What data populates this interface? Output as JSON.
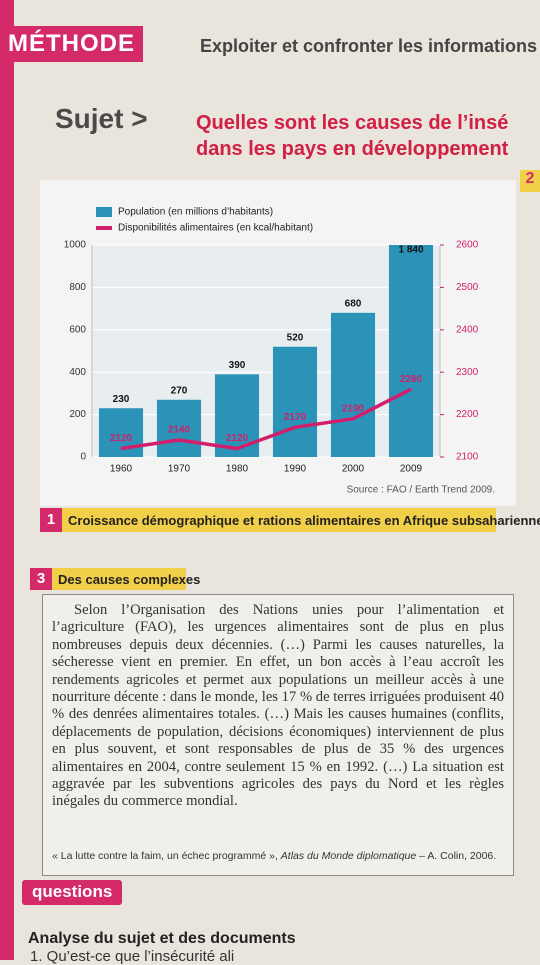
{
  "header": {
    "tag": "MÉTHODE",
    "title": "Exploiter et confronter les informations d"
  },
  "subject": {
    "label": "Sujet >",
    "question": [
      "Quelles sont les causes de l’insé",
      "dans les pays en développement"
    ]
  },
  "side_tab": "2",
  "chart_data": {
    "type": "bar",
    "categories": [
      "1960",
      "1970",
      "1980",
      "1990",
      "2000",
      "2009"
    ],
    "series": [
      {
        "name": "Population (en millions d’habitants)",
        "color": "#2b93b8",
        "type": "bar",
        "values": [
          230,
          270,
          390,
          520,
          680,
          1840
        ],
        "value_labels": [
          "230",
          "270",
          "390",
          "520",
          "680",
          "1 840"
        ]
      },
      {
        "name": "Disponibilités alimentaires (en kcal/habitant)",
        "color": "#d21f6c",
        "type": "line",
        "axis": "y2",
        "values": [
          2120,
          2140,
          2120,
          2170,
          2190,
          2260
        ]
      }
    ],
    "ylim": [
      0,
      1000
    ],
    "yticks": [
      0,
      200,
      400,
      600,
      800,
      1000
    ],
    "y2lim": [
      2100,
      2600
    ],
    "y2ticks": [
      2100,
      2200,
      2300,
      2400,
      2500,
      2600
    ],
    "source": "Source : FAO / Earth Trend 2009."
  },
  "doc1": {
    "number": "1",
    "caption": "Croissance démographique et rations alimentaires en Afrique subsaharienne"
  },
  "doc3": {
    "number": "3",
    "title": "Des causes complexes",
    "text": "Selon l’Organisation des Nations unies pour l’alimentation et l’agriculture (FAO), les urgences alimentaires sont de plus en plus nombreuses depuis deux décennies. (…) Parmi les causes naturelles, la sécheresse vient en premier. En effet, un bon accès à l’eau accroît les rendements agricoles et permet aux populations un meilleur accès à une nourriture décente : dans le monde, les 17 % de terres irriguées produisent 40 % des denrées alimentaires totales. (…) Mais les causes humaines (conflits, déplacements de population, décisions économiques) interviennent de plus en plus souvent, et sont responsables de plus de 35 % des urgences alimentaires en 2004, contre seulement 15 % en 1992. (…) La situation est aggravée par les subventions agricoles des pays du Nord et les règles inégales du commerce mondial.",
    "citation": {
      "title": "« La lutte contre la faim, un échec programmé »,",
      "source": "Atlas du Monde diplomatique",
      "publisher": "– A. Colin, 2006."
    }
  },
  "questions": {
    "label": "questions",
    "heading": "Analyse du sujet et des documents",
    "items": [
      "1. Qu’est-ce que l’insécurité ali"
    ]
  }
}
